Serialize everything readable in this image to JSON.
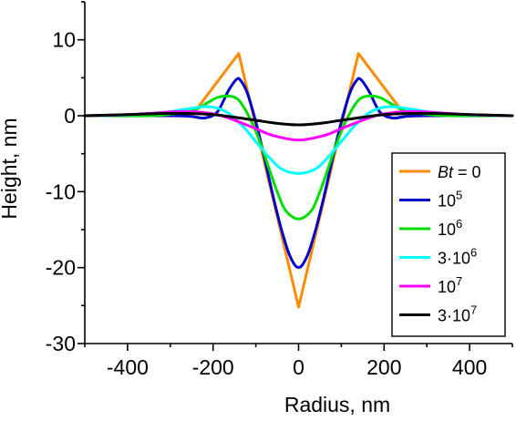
{
  "chart_data": {
    "type": "line",
    "xlabel": "Radius, nm",
    "ylabel": "Height, nm",
    "xlim": [
      -500,
      500
    ],
    "ylim": [
      -30,
      15
    ],
    "x_ticks": [
      "-400",
      "-200",
      "0",
      "200",
      "400"
    ],
    "y_ticks": [
      "10",
      "0",
      "-10",
      "-20",
      "-30"
    ],
    "grid": false,
    "legend_position": "bottom-right",
    "series": [
      {
        "name": "Bt = 0",
        "name_italic": "Bt",
        "name_rest": " = 0",
        "color": "#ff8c00",
        "x": [
          -500,
          -250,
          -140,
          0,
          140,
          250,
          500
        ],
        "y": [
          0,
          0,
          8.2,
          -25.2,
          8.2,
          0,
          0
        ]
      },
      {
        "name": "10^5",
        "name_base": "10",
        "name_sup": "5",
        "color": "#0000cc",
        "x": [
          -500,
          -300,
          -250,
          -220,
          -190,
          -165,
          -145,
          -135,
          -120,
          -100,
          -80,
          -60,
          -40,
          -20,
          0,
          20,
          40,
          60,
          80,
          100,
          120,
          135,
          145,
          165,
          190,
          220,
          250,
          300,
          500
        ],
        "y": [
          0,
          0,
          -0.1,
          -0.3,
          0.5,
          3.2,
          4.8,
          4.6,
          3.0,
          -0.8,
          -5.5,
          -10.5,
          -15,
          -18.5,
          -20,
          -18.5,
          -15,
          -10.5,
          -5.5,
          -0.8,
          3.0,
          4.6,
          4.8,
          3.2,
          0.5,
          -0.3,
          -0.1,
          0,
          0
        ]
      },
      {
        "name": "10^6",
        "name_base": "10",
        "name_sup": "6",
        "color": "#00dd00",
        "x": [
          -500,
          -350,
          -300,
          -250,
          -210,
          -190,
          -165,
          -145,
          -130,
          -110,
          -90,
          -70,
          -50,
          -30,
          0,
          30,
          50,
          70,
          90,
          110,
          130,
          145,
          165,
          190,
          210,
          250,
          300,
          350,
          500
        ],
        "y": [
          0,
          0,
          0.2,
          0.6,
          1.8,
          2.4,
          2.6,
          2.3,
          1.3,
          -0.8,
          -3.5,
          -6.8,
          -10,
          -12.5,
          -13.6,
          -12.5,
          -10,
          -6.8,
          -3.5,
          -0.8,
          1.3,
          2.3,
          2.6,
          2.4,
          1.8,
          0.6,
          0.2,
          0,
          0
        ]
      },
      {
        "name": "3·10^6",
        "name_base": "3·10",
        "name_sup": "6",
        "color": "#00ffff",
        "x": [
          -500,
          -400,
          -320,
          -260,
          -220,
          -190,
          -160,
          -130,
          -100,
          -70,
          -40,
          0,
          40,
          70,
          100,
          130,
          160,
          190,
          220,
          260,
          320,
          400,
          500
        ],
        "y": [
          0,
          0.1,
          0.4,
          0.9,
          1.2,
          1.0,
          0.2,
          -1.4,
          -3.4,
          -5.4,
          -7,
          -7.6,
          -7,
          -5.4,
          -3.4,
          -1.4,
          0.2,
          1.0,
          1.2,
          0.9,
          0.4,
          0.1,
          0
        ]
      },
      {
        "name": "10^7",
        "name_base": "10",
        "name_sup": "7",
        "color": "#ff00ff",
        "x": [
          -500,
          -420,
          -350,
          -300,
          -260,
          -220,
          -180,
          -140,
          -100,
          -60,
          0,
          60,
          100,
          140,
          180,
          220,
          260,
          300,
          350,
          420,
          500
        ],
        "y": [
          0,
          0.1,
          0.3,
          0.5,
          0.55,
          0.4,
          0,
          -0.8,
          -1.7,
          -2.6,
          -3.2,
          -2.6,
          -1.7,
          -0.8,
          0,
          0.4,
          0.55,
          0.5,
          0.3,
          0.1,
          0
        ]
      },
      {
        "name": "3·10^7",
        "name_base": "3·10",
        "name_sup": "7",
        "color": "#000000",
        "x": [
          -500,
          -400,
          -320,
          -260,
          -200,
          -150,
          -100,
          -50,
          0,
          50,
          100,
          150,
          200,
          260,
          320,
          400,
          500
        ],
        "y": [
          0,
          0.15,
          0.3,
          0.3,
          0.15,
          -0.2,
          -0.6,
          -1.0,
          -1.2,
          -1.0,
          -0.6,
          -0.2,
          0.15,
          0.3,
          0.3,
          0.15,
          0
        ]
      }
    ]
  }
}
